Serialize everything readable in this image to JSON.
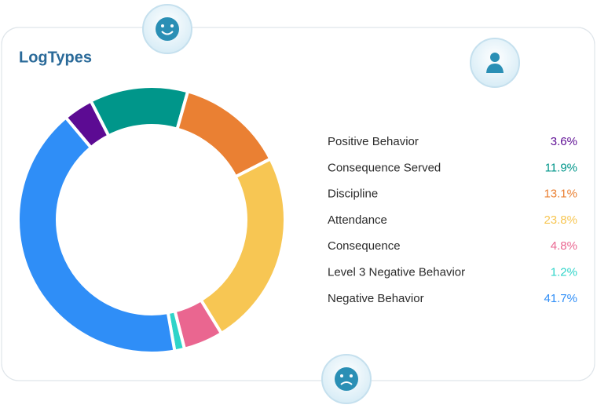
{
  "chart_data": {
    "type": "donut",
    "title": "LogTypes",
    "categories": [
      "Positive Behavior",
      "Consequence Served",
      "Discipline",
      "Attendance",
      "Consequence",
      "Level 3 Negative Behavior",
      "Negative Behavior"
    ],
    "values": [
      3.6,
      11.9,
      13.1,
      23.8,
      4.8,
      1.2,
      41.7
    ],
    "value_labels": [
      "3.6%",
      "11.9%",
      "13.1%",
      "23.8%",
      "4.8%",
      "1.2%",
      "41.7%"
    ],
    "colors": [
      "#5c0b93",
      "#00968a",
      "#ea8033",
      "#f7c653",
      "#ea6690",
      "#2fd4c9",
      "#2f8ef7"
    ]
  }
}
